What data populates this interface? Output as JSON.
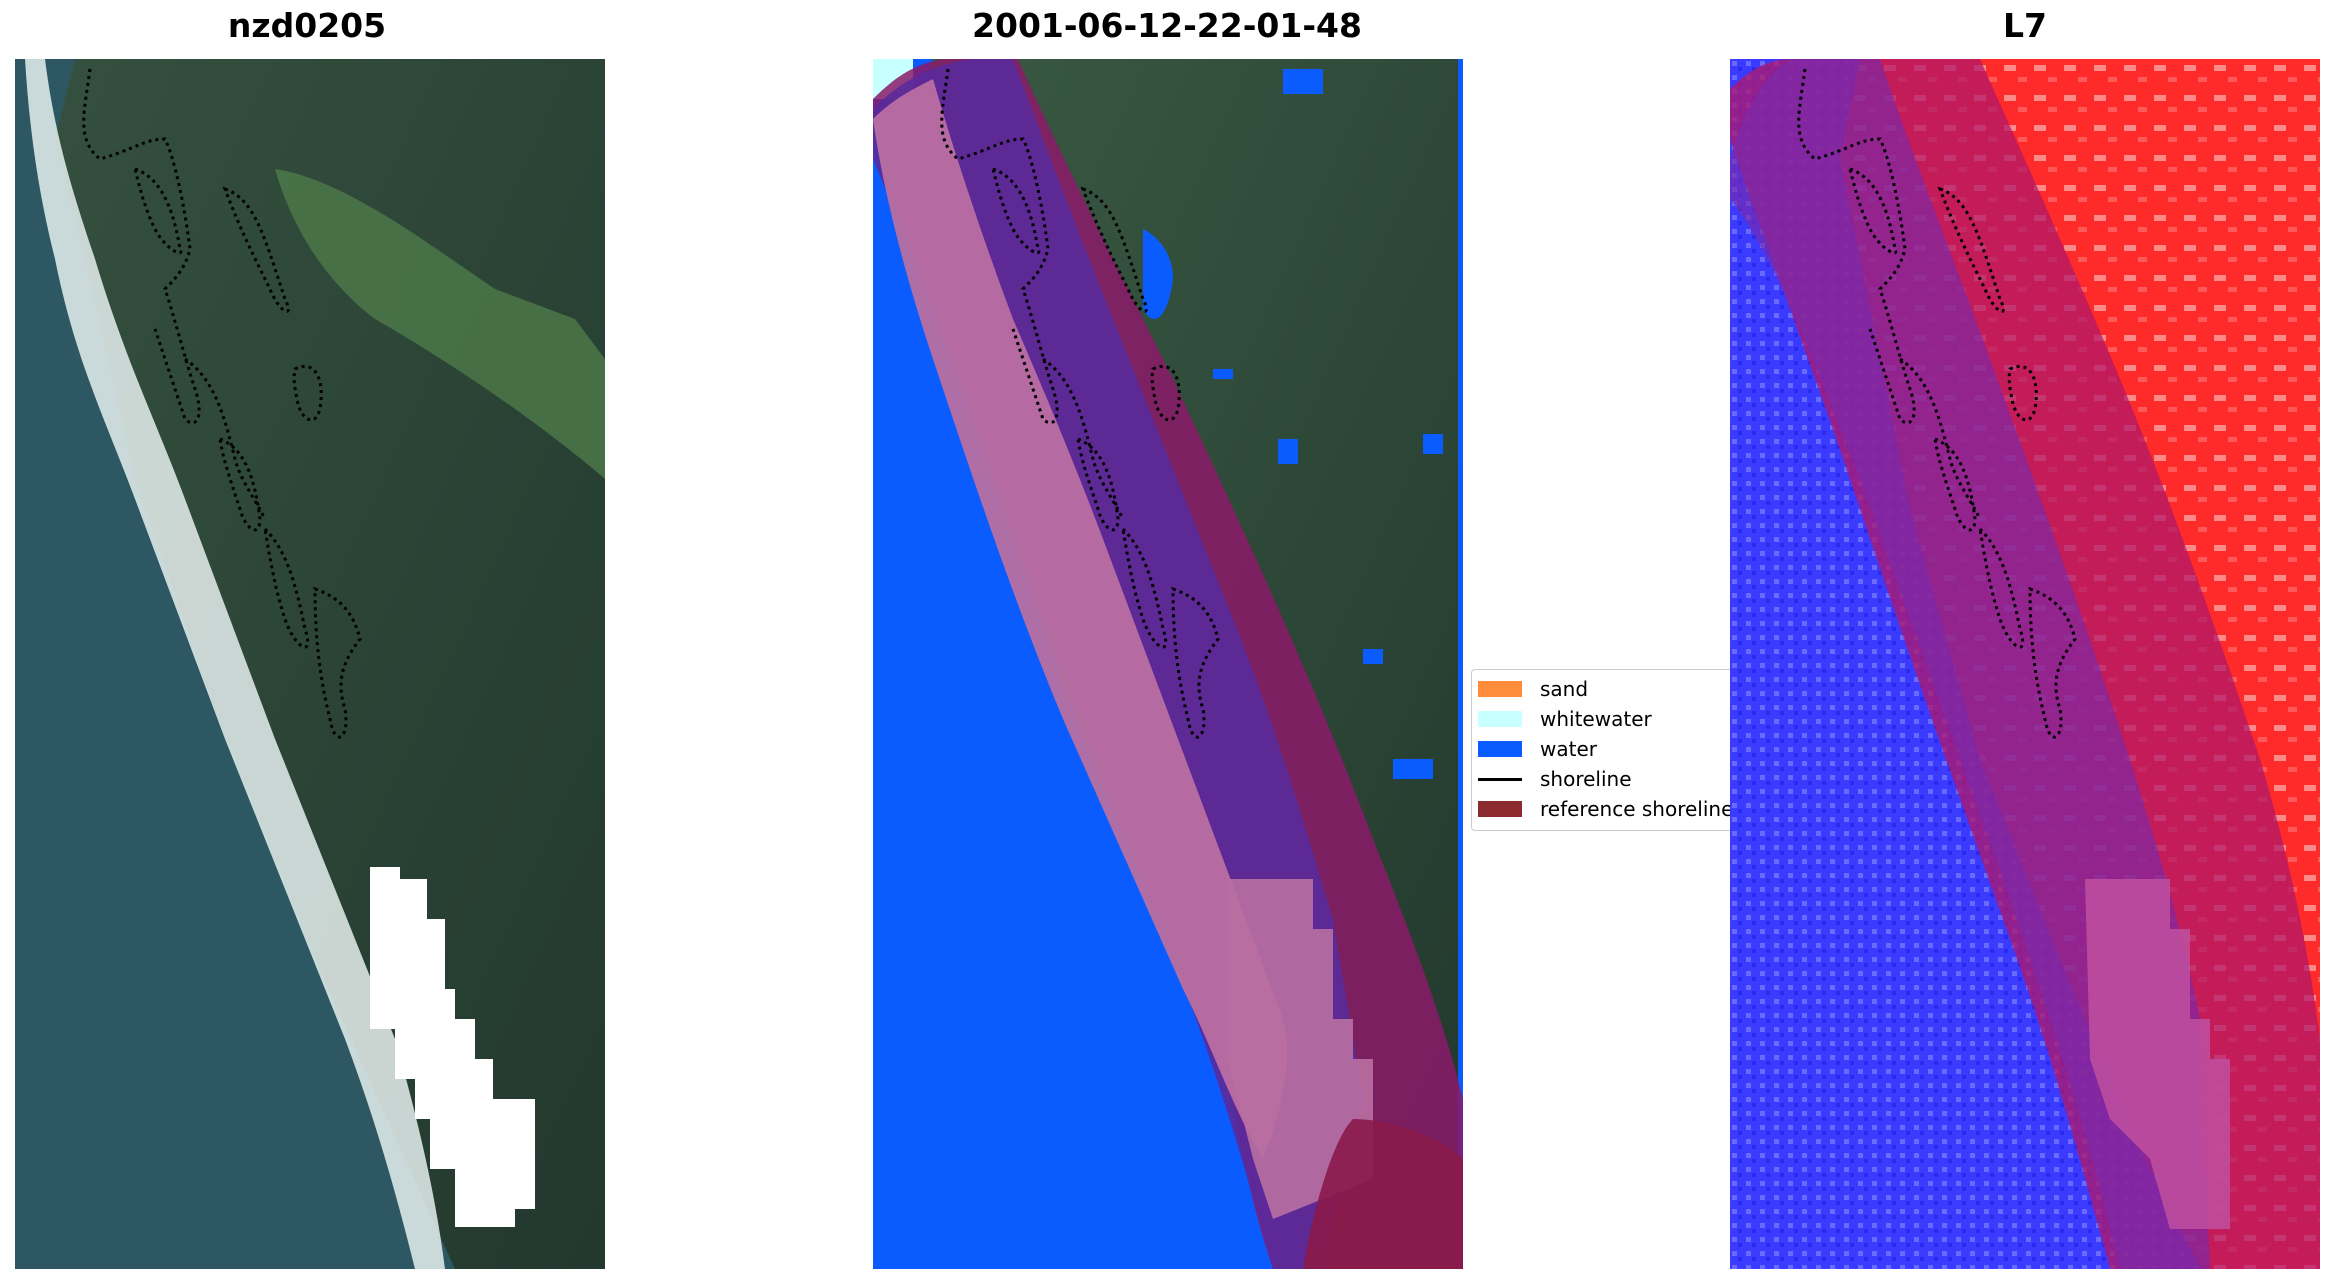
{
  "panels": [
    {
      "title": "nzd0205",
      "kind": "rgb"
    },
    {
      "title": "2001-06-12-22-01-48",
      "kind": "classified"
    },
    {
      "title": "L7",
      "kind": "mndwi"
    }
  ],
  "legend": [
    {
      "label": "sand",
      "kind": "patch",
      "color": "#ff8c3a"
    },
    {
      "label": "whitewater",
      "kind": "patch",
      "color": "#c8ffff"
    },
    {
      "label": "water",
      "kind": "patch",
      "color": "#0a5cff"
    },
    {
      "label": "shoreline",
      "kind": "line",
      "color": "#000000"
    },
    {
      "label": "reference shoreline",
      "kind": "patch",
      "color": "#8b2a2f"
    }
  ],
  "colors": {
    "ocean": "#2c5660",
    "surf": "#e8f2f0",
    "vegetation": "#2e4a36",
    "water_class": "#0a5cff",
    "buffer": "#5a1f9a",
    "reference_band": "#8b1a3a",
    "mndwi_land": "#ff2020",
    "mndwi_water": "#3a3aff",
    "shoreline": "#000000",
    "cloud_mask": "#ffffff"
  }
}
